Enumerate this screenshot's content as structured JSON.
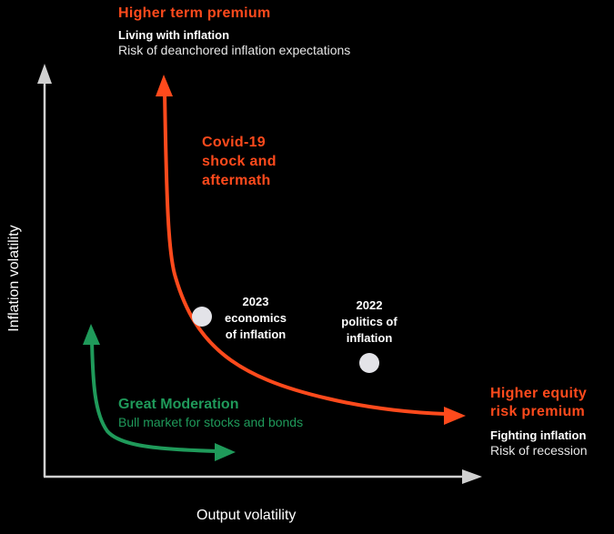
{
  "colors": {
    "background": "#000000",
    "axis": "#d0d0d0",
    "orange": "#ff4a1c",
    "green": "#1f9a5a",
    "marker": "#e3e3e8",
    "text": "#ffffff"
  },
  "axes": {
    "x_label": "Output volatility",
    "y_label": "Inflation volatility"
  },
  "top_region": {
    "title": "Higher term premium",
    "subtitle_bold": "Living with inflation",
    "subtitle": "Risk of deanchored inflation expectations"
  },
  "covid": {
    "line1": "Covid-19",
    "line2": "shock and",
    "line3": "aftermath"
  },
  "point_2023": {
    "line1": "2023",
    "line2": "economics",
    "line3": "of inflation"
  },
  "point_2022": {
    "line1": "2022",
    "line2": "politics of",
    "line3": "inflation"
  },
  "right_region": {
    "title_line1": "Higher equity",
    "title_line2": "risk premium",
    "subtitle_bold": "Fighting inflation",
    "subtitle": "Risk of recession"
  },
  "great_moderation": {
    "title": "Great Moderation",
    "subtitle": "Bull market for stocks and bonds"
  }
}
